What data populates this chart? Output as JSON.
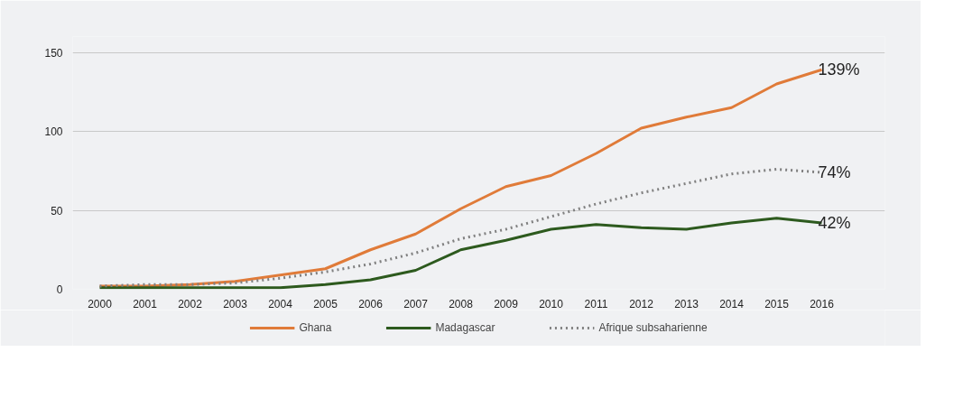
{
  "chart_data": {
    "type": "line",
    "categories": [
      "2000",
      "2001",
      "2002",
      "2003",
      "2004",
      "2005",
      "2006",
      "2007",
      "2008",
      "2009",
      "2010",
      "2011",
      "2012",
      "2013",
      "2014",
      "2015",
      "2016"
    ],
    "series": [
      {
        "name": "Ghana",
        "color": "#e07b39",
        "line_style": "solid",
        "values": [
          2,
          2,
          3,
          5,
          9,
          13,
          25,
          35,
          51,
          65,
          72,
          86,
          102,
          109,
          115,
          130,
          139
        ]
      },
      {
        "name": "Madagascar",
        "color": "#2d5a1e",
        "line_style": "solid",
        "values": [
          1,
          1,
          1,
          1,
          1,
          3,
          6,
          12,
          25,
          31,
          38,
          41,
          39,
          38,
          42,
          45,
          42
        ]
      },
      {
        "name": "Afrique subsaharienne",
        "color": "#808080",
        "line_style": "dotted",
        "values": [
          2,
          3,
          3,
          4,
          7,
          11,
          16,
          23,
          32,
          38,
          46,
          54,
          61,
          67,
          73,
          76,
          74
        ]
      }
    ],
    "ylim": [
      0,
      160
    ],
    "yticks": [
      0,
      50,
      100,
      150
    ],
    "grid": "y",
    "legend": "bottom",
    "marker": "none",
    "annotations": [
      {
        "text": "139%",
        "x": "2016",
        "y": 139
      },
      {
        "text": "74%",
        "x": "2016",
        "y": 74
      },
      {
        "text": "42%",
        "x": "2016",
        "y": 42
      }
    ]
  }
}
